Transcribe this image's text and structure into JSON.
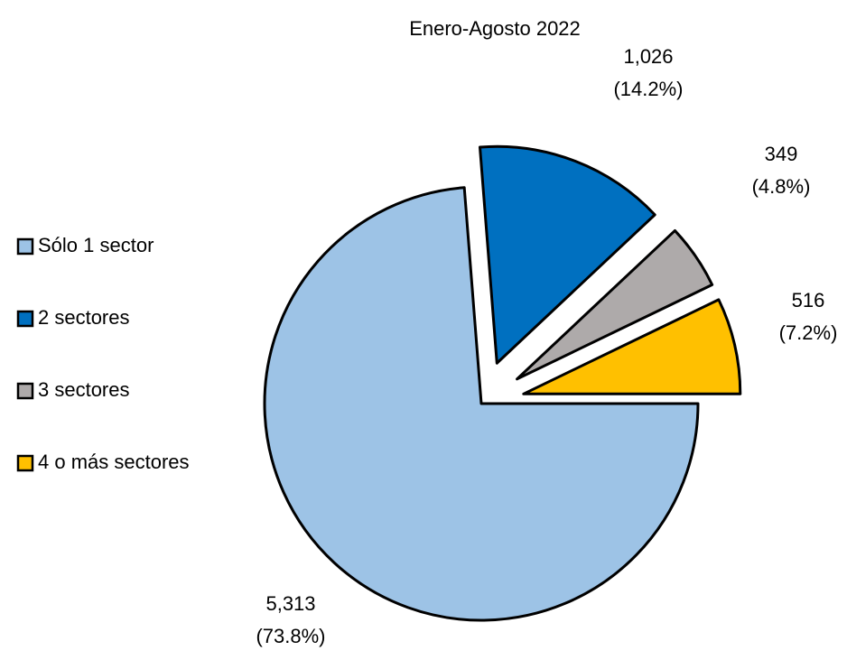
{
  "chart_data": {
    "type": "pie",
    "title": "Enero-Agosto  2022",
    "categories": [
      "Sólo 1 sector",
      "2 sectores",
      "3 sectores",
      "4 o más sectores"
    ],
    "values": [
      5313,
      1026,
      349,
      516
    ],
    "value_labels": [
      "5,313",
      "1,026",
      "349",
      "516"
    ],
    "percent_labels": [
      "(73.8%)",
      "(14.2%)",
      "(4.8%)",
      "(7.2%)"
    ],
    "colors": [
      "#9dc3e6",
      "#0070c0",
      "#aeaaaa",
      "#ffc000"
    ],
    "exploded": [
      false,
      true,
      true,
      true
    ],
    "legend": "left"
  }
}
